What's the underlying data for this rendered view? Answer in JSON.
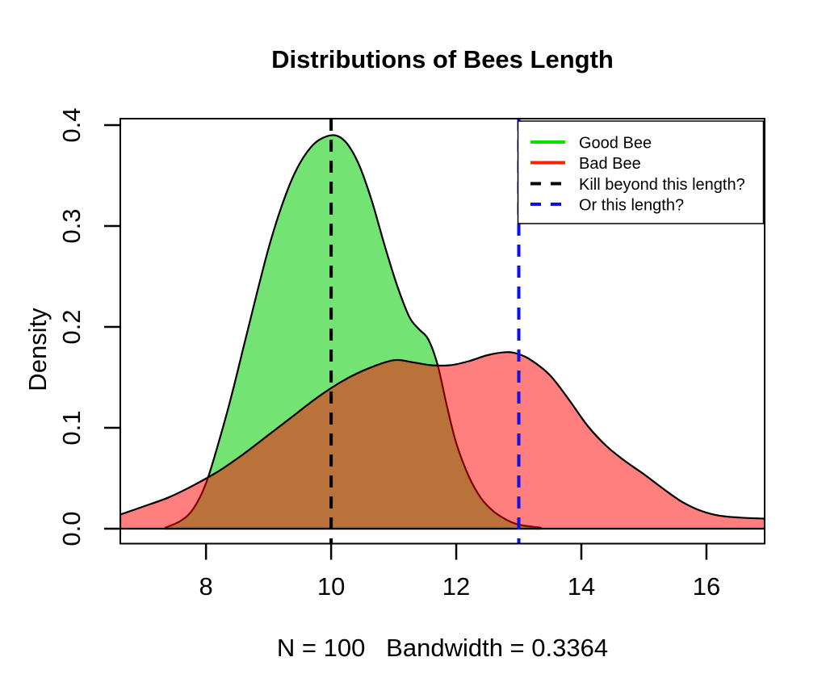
{
  "figure": {
    "title": "Distributions of Bees Length",
    "y_axis_label": "Density",
    "x_axis_caption": "N = 100   Bandwidth = 0.3364",
    "x_tick_labels": [
      "8",
      "10",
      "12",
      "14",
      "16"
    ],
    "y_tick_labels": [
      "0.0",
      "0.1",
      "0.2",
      "0.3",
      "0.4"
    ]
  },
  "legend": {
    "items": [
      {
        "label": "Good Bee",
        "color": "#00E400",
        "style": "solid"
      },
      {
        "label": "Bad Bee",
        "color": "#FF2200",
        "style": "solid"
      },
      {
        "label": "Kill beyond this length?",
        "color": "#000000",
        "style": "dashed"
      },
      {
        "label": "Or this length?",
        "color": "#0F0FEA",
        "style": "dashed"
      }
    ]
  },
  "chart_data": {
    "type": "area",
    "title": "Distributions of Bees Length",
    "xlabel": "N = 100   Bandwidth = 0.3364",
    "ylabel": "Density",
    "n": 100,
    "bandwidth": 0.3364,
    "xlim": [
      6.63,
      16.93
    ],
    "ylim": [
      0,
      0.4064
    ],
    "x_ticks": [
      8,
      10,
      12,
      14,
      16
    ],
    "y_ticks": [
      0,
      0.1,
      0.2,
      0.3,
      0.4
    ],
    "grid": false,
    "legend_position": "top-right",
    "series": [
      {
        "name": "Good Bee",
        "fill": "rgba(0,205,0,0.55)",
        "stroke": "#000000",
        "points": [
          [
            7.35,
            0.001
          ],
          [
            7.6,
            0.008
          ],
          [
            7.8,
            0.02
          ],
          [
            8.0,
            0.045
          ],
          [
            8.2,
            0.085
          ],
          [
            8.4,
            0.13
          ],
          [
            8.6,
            0.18
          ],
          [
            8.8,
            0.23
          ],
          [
            9.0,
            0.278
          ],
          [
            9.2,
            0.318
          ],
          [
            9.4,
            0.35
          ],
          [
            9.6,
            0.372
          ],
          [
            9.8,
            0.385
          ],
          [
            10.05,
            0.39
          ],
          [
            10.25,
            0.382
          ],
          [
            10.45,
            0.36
          ],
          [
            10.65,
            0.325
          ],
          [
            10.85,
            0.282
          ],
          [
            11.05,
            0.242
          ],
          [
            11.25,
            0.21
          ],
          [
            11.4,
            0.198
          ],
          [
            11.55,
            0.188
          ],
          [
            11.7,
            0.163
          ],
          [
            11.85,
            0.122
          ],
          [
            12.0,
            0.085
          ],
          [
            12.2,
            0.052
          ],
          [
            12.4,
            0.03
          ],
          [
            12.6,
            0.017
          ],
          [
            12.8,
            0.009
          ],
          [
            13.0,
            0.004
          ],
          [
            13.35,
            0.001
          ]
        ]
      },
      {
        "name": "Bad Bee",
        "fill": "rgba(255,0,0,0.5)",
        "stroke": "#000000",
        "points": [
          [
            6.63,
            0.014
          ],
          [
            7.0,
            0.022
          ],
          [
            7.4,
            0.031
          ],
          [
            7.8,
            0.043
          ],
          [
            8.2,
            0.057
          ],
          [
            8.6,
            0.074
          ],
          [
            9.0,
            0.093
          ],
          [
            9.4,
            0.112
          ],
          [
            9.8,
            0.131
          ],
          [
            10.2,
            0.147
          ],
          [
            10.6,
            0.159
          ],
          [
            11.0,
            0.167
          ],
          [
            11.3,
            0.165
          ],
          [
            11.6,
            0.162
          ],
          [
            11.9,
            0.162
          ],
          [
            12.2,
            0.166
          ],
          [
            12.5,
            0.172
          ],
          [
            12.8,
            0.175
          ],
          [
            13.0,
            0.173
          ],
          [
            13.2,
            0.167
          ],
          [
            13.5,
            0.152
          ],
          [
            13.8,
            0.128
          ],
          [
            14.1,
            0.102
          ],
          [
            14.4,
            0.082
          ],
          [
            14.7,
            0.067
          ],
          [
            15.0,
            0.054
          ],
          [
            15.3,
            0.04
          ],
          [
            15.6,
            0.027
          ],
          [
            15.9,
            0.018
          ],
          [
            16.2,
            0.013
          ],
          [
            16.55,
            0.011
          ],
          [
            16.93,
            0.01
          ]
        ]
      }
    ],
    "vlines": [
      {
        "label": "Kill beyond this length?",
        "x": 10,
        "color": "#000000",
        "style": "dashed"
      },
      {
        "label": "Or this length?",
        "x": 13,
        "color": "#0F0FEA",
        "style": "dashed"
      }
    ]
  }
}
